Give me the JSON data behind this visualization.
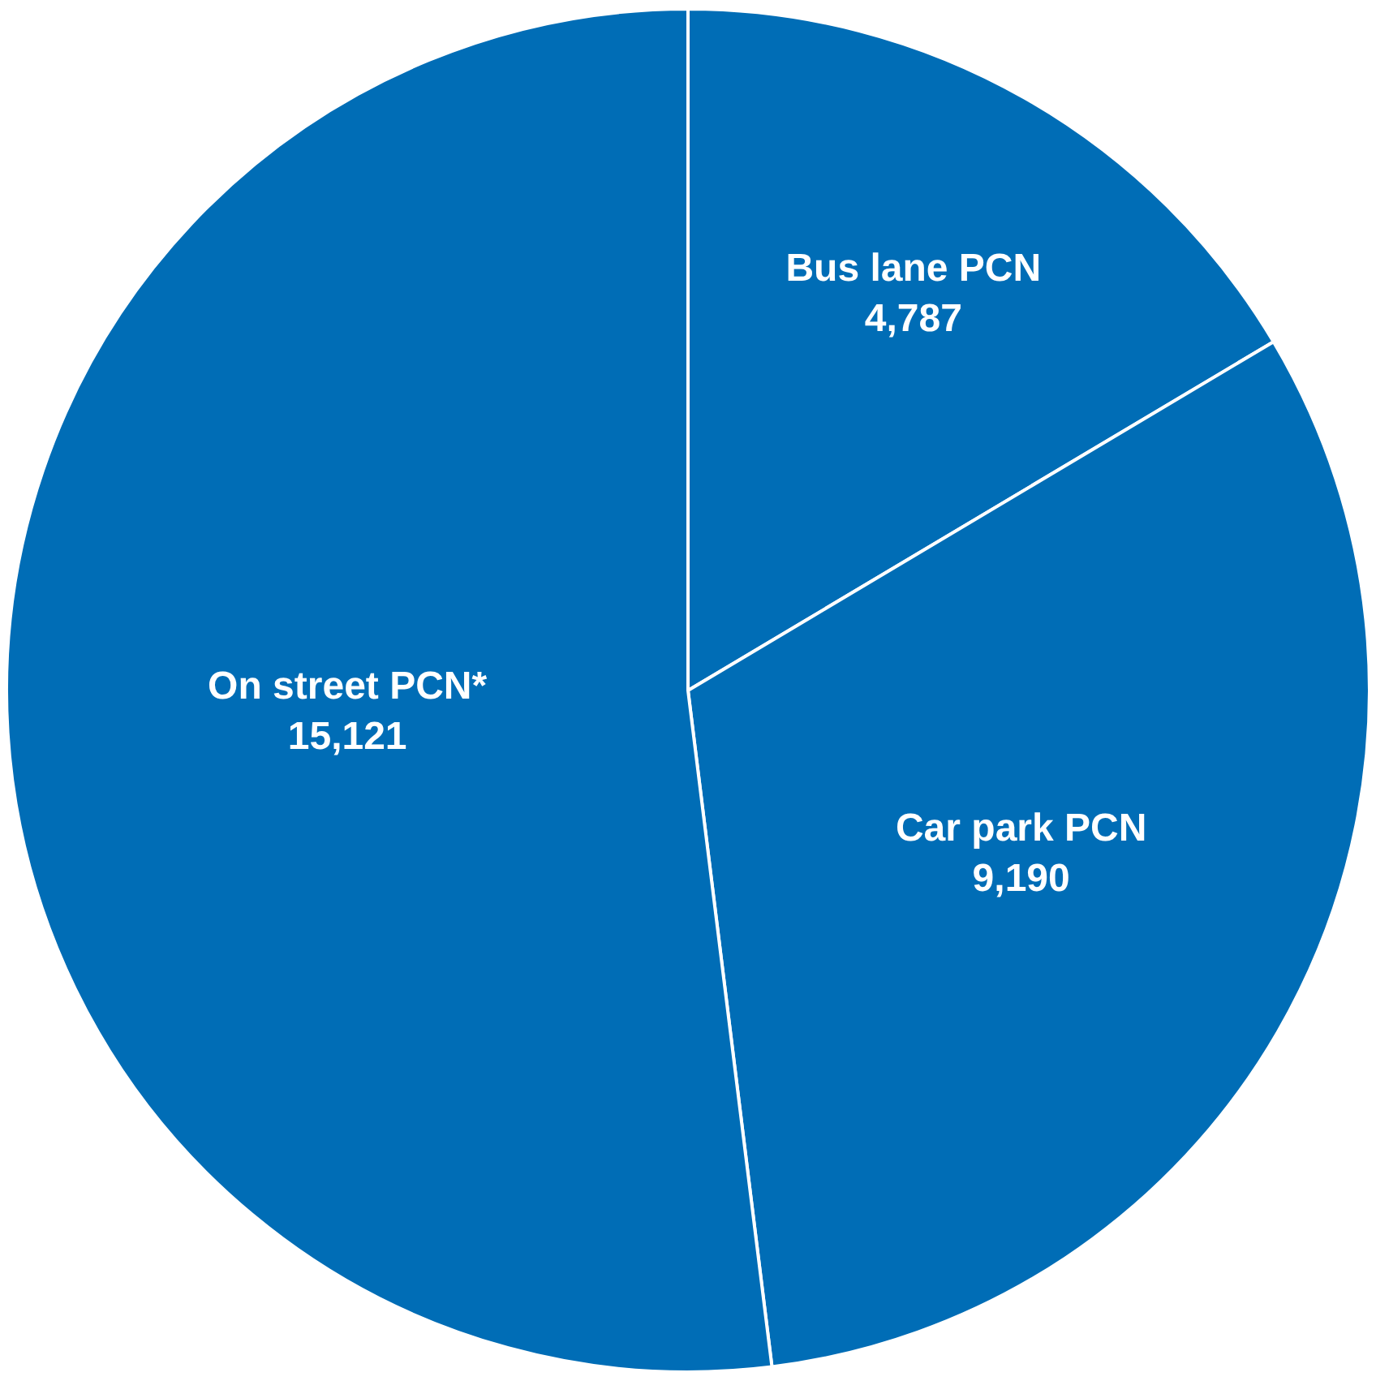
{
  "chart_data": {
    "type": "pie",
    "categories": [
      "Bus lane PCN",
      "Car park PCN",
      "On street PCN*"
    ],
    "values": [
      4787,
      9190,
      15121
    ],
    "colors": [
      "#006db6",
      "#006db6",
      "#006db6"
    ],
    "value_labels": [
      "4,787",
      "9,190",
      "15,121"
    ],
    "legend": false
  }
}
